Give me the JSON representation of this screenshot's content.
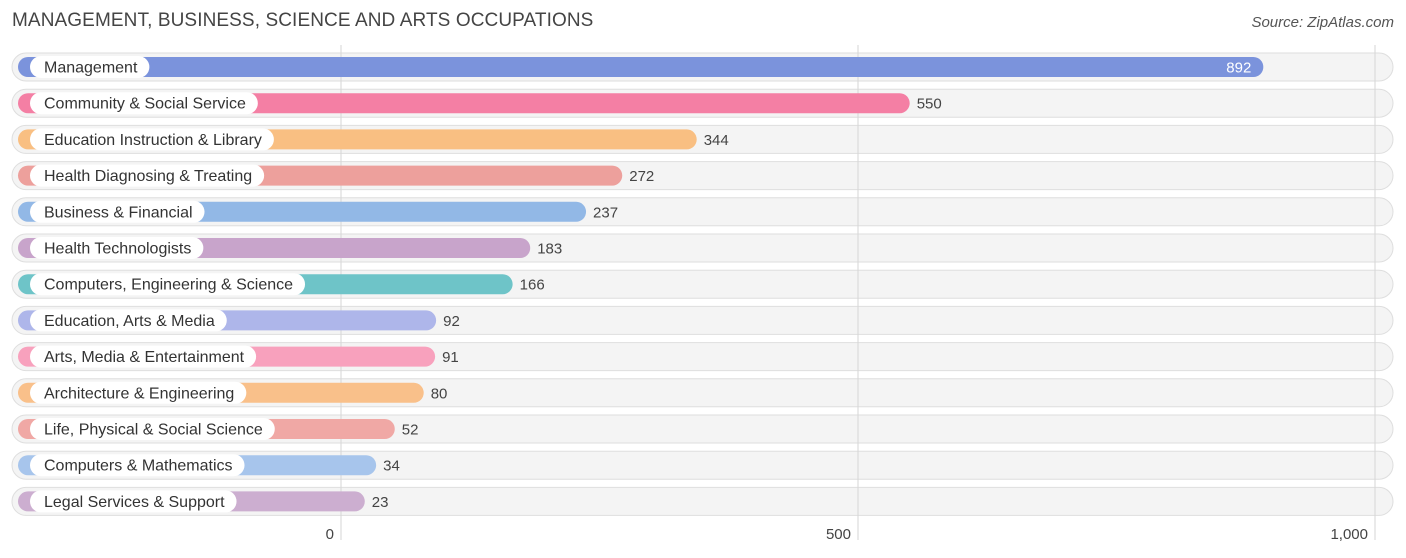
{
  "header": {
    "title": "MANAGEMENT, BUSINESS, SCIENCE AND ARTS OCCUPATIONS",
    "source": "Source: ZipAtlas.com"
  },
  "chart_data": {
    "type": "bar",
    "orientation": "horizontal",
    "title": "MANAGEMENT, BUSINESS, SCIENCE AND ARTS OCCUPATIONS",
    "xlim": [
      0,
      1000
    ],
    "x_ticks": [
      0,
      500,
      1000
    ],
    "x_tick_labels": [
      "0",
      "500",
      "1,000"
    ],
    "grid": true,
    "categories": [
      "Management",
      "Community & Social Service",
      "Education Instruction & Library",
      "Health Diagnosing & Treating",
      "Business & Financial",
      "Health Technologists",
      "Computers, Engineering & Science",
      "Education, Arts & Media",
      "Arts, Media & Entertainment",
      "Architecture & Engineering",
      "Life, Physical & Social Science",
      "Computers & Mathematics",
      "Legal Services & Support"
    ],
    "values": [
      892,
      550,
      344,
      272,
      237,
      183,
      166,
      92,
      91,
      80,
      52,
      34,
      23
    ],
    "value_labels": [
      "892",
      "550",
      "344",
      "272",
      "237",
      "183",
      "166",
      "92",
      "91",
      "80",
      "52",
      "34",
      "23"
    ],
    "colors": [
      "#7b93dc",
      "#f47fa4",
      "#f9bf82",
      "#eda09c",
      "#92b8e6",
      "#c8a4cb",
      "#6ec4c8",
      "#aeb6ea",
      "#f8a1bd",
      "#f9c08a",
      "#f0a8a5",
      "#a7c5ec",
      "#ccaed0"
    ]
  }
}
